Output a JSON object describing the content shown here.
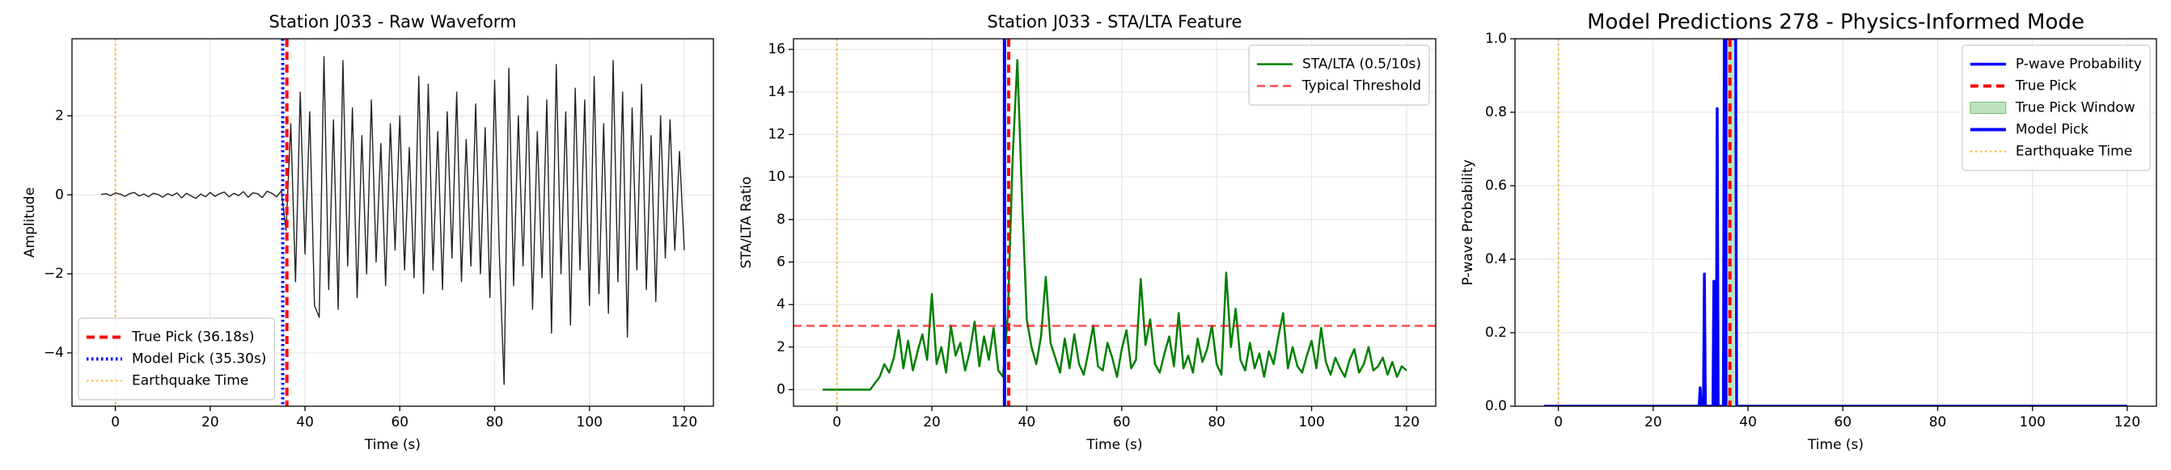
{
  "chart_data": [
    {
      "type": "line",
      "title": "Station J033 - Raw Waveform",
      "xlabel": "Time (s)",
      "ylabel": "Amplitude",
      "xlim": [
        -9.15,
        126.15
      ],
      "xticks": [
        0,
        20,
        40,
        60,
        80,
        100,
        120
      ],
      "ylim": [
        -5.35,
        3.95
      ],
      "yticks": [
        {
          "value": -4,
          "label": "−4"
        },
        {
          "value": -2,
          "label": "−2"
        },
        0,
        2
      ],
      "grid": true,
      "legend": "lower left",
      "x": [
        -3,
        -2,
        -1,
        0,
        1,
        2,
        3,
        4,
        5,
        6,
        7,
        8,
        9,
        10,
        11,
        12,
        13,
        14,
        15,
        16,
        17,
        18,
        19,
        20,
        21,
        22,
        23,
        24,
        25,
        26,
        27,
        28,
        29,
        30,
        31,
        32,
        33,
        34,
        35,
        36,
        37,
        38,
        39,
        40,
        41,
        42,
        43,
        44,
        45,
        46,
        47,
        48,
        49,
        50,
        51,
        52,
        53,
        54,
        55,
        56,
        57,
        58,
        59,
        60,
        61,
        62,
        63,
        64,
        65,
        66,
        67,
        68,
        69,
        70,
        71,
        72,
        73,
        74,
        75,
        76,
        77,
        78,
        79,
        80,
        81,
        82,
        83,
        84,
        85,
        86,
        87,
        88,
        89,
        90,
        91,
        92,
        93,
        94,
        95,
        96,
        97,
        98,
        99,
        100,
        101,
        102,
        103,
        104,
        105,
        106,
        107,
        108,
        109,
        110,
        111,
        112,
        113,
        114,
        115,
        116,
        117,
        118,
        119,
        120
      ],
      "series": [
        {
          "kind": "line",
          "color": "#222222",
          "width": 1.4,
          "values": [
            0.01,
            0.03,
            -0.02,
            0.05,
            0.02,
            -0.04,
            0.03,
            0.06,
            -0.03,
            0.02,
            -0.05,
            0.04,
            0.01,
            -0.06,
            0.03,
            -0.02,
            0.05,
            -0.08,
            0.04,
            -0.03,
            -0.09,
            0.02,
            -0.05,
            0.06,
            -0.04,
            0.03,
            0.07,
            -0.05,
            0.04,
            -0.02,
            0.08,
            -0.06,
            0.05,
            0.03,
            -0.07,
            0.09,
            0.04,
            -0.05,
            0.1,
            -0.9,
            1.8,
            -2.2,
            2.6,
            -1.5,
            2.1,
            -2.8,
            -3.1,
            3.5,
            -2.4,
            1.9,
            -2.9,
            3.4,
            -1.8,
            2.2,
            -2.6,
            1.5,
            -2.0,
            2.4,
            -1.7,
            1.3,
            -2.3,
            1.8,
            -1.4,
            2.0,
            -1.9,
            1.2,
            -2.1,
            3.0,
            -2.5,
            2.8,
            -1.9,
            1.6,
            -2.4,
            2.1,
            -1.6,
            2.6,
            -2.2,
            1.4,
            -1.8,
            2.3,
            -2.0,
            1.7,
            -2.6,
            2.9,
            -1.5,
            -4.8,
            3.2,
            -2.3,
            2.0,
            -1.8,
            2.5,
            -2.9,
            1.6,
            -2.1,
            2.4,
            -3.5,
            3.3,
            -2.0,
            2.1,
            -3.3,
            2.7,
            -1.9,
            2.4,
            -2.8,
            3.0,
            -2.5,
            1.8,
            -3.0,
            3.4,
            -2.2,
            2.6,
            -3.6,
            2.2,
            -1.9,
            2.8,
            -2.4,
            1.5,
            -2.7,
            2.0,
            -1.6,
            1.9,
            -1.4,
            1.1,
            -1.4
          ]
        },
        {
          "kind": "vline",
          "name": "True Pick (36.18s)",
          "color": "#ff0000",
          "style": "dashed",
          "width": 4,
          "x": 36.18
        },
        {
          "kind": "vline",
          "name": "Model Pick (35.30s)",
          "color": "#0000ff",
          "style": "dotted",
          "width": 4,
          "x": 35.3
        },
        {
          "kind": "vline",
          "name": "Earthquake Time",
          "color": "#ffa500",
          "style": "dotted",
          "width": 2,
          "alpha": 0.8,
          "x": 0
        }
      ]
    },
    {
      "type": "line",
      "title": "Station J033 - STA/LTA Feature",
      "xlabel": "Time (s)",
      "ylabel": "STA/LTA Ratio",
      "xlim": [
        -9.15,
        126.15
      ],
      "xticks": [
        0,
        20,
        40,
        60,
        80,
        100,
        120
      ],
      "ylim": [
        -0.78,
        16.5
      ],
      "yticks": [
        0,
        2,
        4,
        6,
        8,
        10,
        12,
        14,
        16
      ],
      "grid": true,
      "legend": "upper right",
      "x": [
        -3,
        -2,
        -1,
        0,
        1,
        2,
        3,
        4,
        5,
        6,
        7,
        8,
        9,
        10,
        11,
        12,
        13,
        14,
        15,
        16,
        17,
        18,
        19,
        20,
        21,
        22,
        23,
        24,
        25,
        26,
        27,
        28,
        29,
        30,
        31,
        32,
        33,
        34,
        35,
        36,
        37,
        38,
        39,
        40,
        41,
        42,
        43,
        44,
        45,
        46,
        47,
        48,
        49,
        50,
        51,
        52,
        53,
        54,
        55,
        56,
        57,
        58,
        59,
        60,
        61,
        62,
        63,
        64,
        65,
        66,
        67,
        68,
        69,
        70,
        71,
        72,
        73,
        74,
        75,
        76,
        77,
        78,
        79,
        80,
        81,
        82,
        83,
        84,
        85,
        86,
        87,
        88,
        89,
        90,
        91,
        92,
        93,
        94,
        95,
        96,
        97,
        98,
        99,
        100,
        101,
        102,
        103,
        104,
        105,
        106,
        107,
        108,
        109,
        110,
        111,
        112,
        113,
        114,
        115,
        116,
        117,
        118,
        119,
        120
      ],
      "series": [
        {
          "kind": "line",
          "name": "STA/LTA (0.5/10s)",
          "color": "#008000",
          "width": 2.5,
          "values": [
            0,
            0,
            0,
            0,
            0,
            0,
            0,
            0,
            0,
            0,
            0,
            0.3,
            0.6,
            1.2,
            0.8,
            1.5,
            2.8,
            1.0,
            2.3,
            0.9,
            1.8,
            2.6,
            1.4,
            4.5,
            1.2,
            2.0,
            0.8,
            3.0,
            1.6,
            2.2,
            0.9,
            1.8,
            3.2,
            1.1,
            2.5,
            1.4,
            2.9,
            0.9,
            0.6,
            3.5,
            10.8,
            15.5,
            9.0,
            3.3,
            2.0,
            1.2,
            2.5,
            5.3,
            2.2,
            1.5,
            0.8,
            2.4,
            1.0,
            2.6,
            1.2,
            0.7,
            1.8,
            3.0,
            1.1,
            0.9,
            2.2,
            1.5,
            0.6,
            1.9,
            2.8,
            1.0,
            1.4,
            5.2,
            2.1,
            3.3,
            1.2,
            0.8,
            1.7,
            2.5,
            1.1,
            3.6,
            1.0,
            1.6,
            0.8,
            2.4,
            1.3,
            1.9,
            3.0,
            1.2,
            0.7,
            5.5,
            2.0,
            3.8,
            1.4,
            0.9,
            2.2,
            1.0,
            1.7,
            0.6,
            1.8,
            1.2,
            2.5,
            3.6,
            1.0,
            2.0,
            1.1,
            0.8,
            1.6,
            2.3,
            1.0,
            2.9,
            1.3,
            0.7,
            1.5,
            1.0,
            0.6,
            1.4,
            1.9,
            0.8,
            1.2,
            2.0,
            0.9,
            1.1,
            1.5,
            0.7,
            1.3,
            0.6,
            1.1,
            0.9
          ]
        },
        {
          "kind": "hline",
          "name": "Typical Threshold",
          "color": "#ff0000",
          "style": "dashed",
          "width": 2.5,
          "alpha": 0.7,
          "y": 3
        },
        {
          "kind": "vline",
          "color": "#0000ff",
          "style": "solid",
          "width": 4,
          "x": 35.3
        },
        {
          "kind": "vline",
          "color": "#ff0000",
          "style": "dashed",
          "width": 4,
          "x": 36.18
        },
        {
          "kind": "vline",
          "color": "#ffa500",
          "style": "dotted",
          "width": 2,
          "alpha": 0.8,
          "x": 0
        }
      ]
    },
    {
      "type": "line",
      "title": "Model Predictions 278 - Physics-Informed Mode",
      "xlabel": "Time (s)",
      "ylabel": "P-wave Probability",
      "xlim": [
        -9.15,
        126.15
      ],
      "xticks": [
        0,
        20,
        40,
        60,
        80,
        100,
        120
      ],
      "ylim": [
        0,
        1
      ],
      "yticks": [
        {
          "value": 0,
          "label": "0.0"
        },
        0.2,
        0.4,
        0.6,
        0.8,
        {
          "value": 1,
          "label": "1.0"
        }
      ],
      "grid": true,
      "legend": "upper right",
      "x": [
        -3,
        29.7,
        29.9,
        30.1,
        30.6,
        30.8,
        31.0,
        32.6,
        32.8,
        33.0,
        33.3,
        33.5,
        33.7,
        34.8,
        35.0,
        37.4,
        37.6,
        120
      ],
      "series": [
        {
          "kind": "line",
          "name": "P-wave Probability",
          "color": "#0000ff",
          "width": 3.5,
          "values": [
            0,
            0,
            0.05,
            0,
            0,
            0.36,
            0,
            0,
            0.34,
            0,
            0,
            0.81,
            0,
            0,
            1,
            1,
            0,
            0
          ]
        },
        {
          "kind": "vline",
          "name": "True Pick",
          "color": "#ff0000",
          "style": "dashed",
          "width": 4,
          "x": 36.18
        },
        {
          "kind": "span",
          "name": "True Pick Window",
          "color": "#2ca02c",
          "alpha": 0.3,
          "x": [
            35.18,
            37.18
          ]
        },
        {
          "kind": "vline",
          "name": "Model Pick",
          "color": "#0000ff",
          "style": "solid",
          "width": 4,
          "x": 35.3
        },
        {
          "kind": "vline",
          "name": "Earthquake Time",
          "color": "#ffa500",
          "style": "dotted",
          "width": 2,
          "alpha": 0.8,
          "x": 0
        }
      ]
    }
  ]
}
